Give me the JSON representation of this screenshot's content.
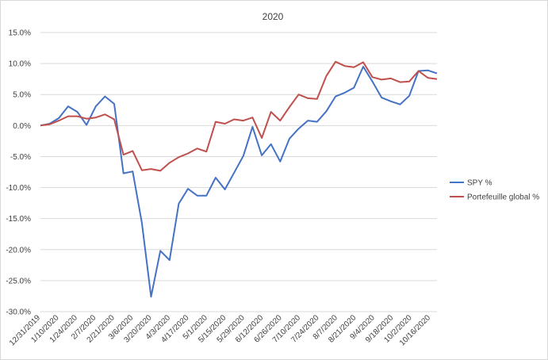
{
  "chart_data": {
    "type": "line",
    "title": "2020",
    "xlabel": "",
    "ylabel": "",
    "ylim": [
      -30,
      15
    ],
    "y_ticks": [
      15,
      10,
      5,
      0,
      -5,
      -10,
      -15,
      -20,
      -25,
      -30
    ],
    "y_tick_labels": [
      "15.0%",
      "10.0%",
      "5.0%",
      "0.0%",
      "-5.0%",
      "-10.0%",
      "-15.0%",
      "-20.0%",
      "-25.0%",
      "-30.0%"
    ],
    "grid": true,
    "legend_position": "right",
    "x_tick_labels": [
      "12/31/2019",
      "1/10/2020",
      "1/24/2020",
      "2/7/2020",
      "2/21/2020",
      "3/6/2020",
      "3/20/2020",
      "4/3/2020",
      "4/17/2020",
      "5/1/2020",
      "5/15/2020",
      "5/29/2020",
      "6/12/2020",
      "6/26/2020",
      "7/10/2020",
      "7/24/2020",
      "8/7/2020",
      "8/21/2020",
      "9/4/2020",
      "9/18/2020",
      "10/2/2020",
      "10/16/2020"
    ],
    "series": [
      {
        "name": "SPY %",
        "color": "#4472c4",
        "values": [
          0.0,
          0.3,
          1.2,
          3.1,
          2.2,
          0.1,
          3.1,
          4.7,
          3.5,
          -7.7,
          -7.4,
          -15.7,
          -27.6,
          -20.2,
          -21.7,
          -12.6,
          -10.2,
          -11.3,
          -11.3,
          -8.4,
          -10.3,
          -7.6,
          -4.9,
          -0.2,
          -4.8,
          -3.0,
          -5.8,
          -2.1,
          -0.5,
          0.8,
          0.6,
          2.3,
          4.7,
          5.3,
          6.1,
          9.5,
          7.1,
          4.5,
          3.9,
          3.4,
          4.8,
          8.8,
          8.9,
          8.4
        ]
      },
      {
        "name": "Portefeuille global %",
        "color": "#c0504d",
        "values": [
          0.0,
          0.2,
          0.8,
          1.5,
          1.5,
          1.1,
          1.3,
          1.8,
          1.0,
          -4.7,
          -4.1,
          -7.2,
          -7.0,
          -7.3,
          -6.0,
          -5.1,
          -4.5,
          -3.7,
          -4.2,
          0.6,
          0.3,
          1.0,
          0.8,
          1.3,
          -2.0,
          2.2,
          0.8,
          3.0,
          5.0,
          4.4,
          4.3,
          8.0,
          10.3,
          9.6,
          9.4,
          10.2,
          7.8,
          7.4,
          7.6,
          7.0,
          7.1,
          8.8,
          7.7,
          7.5
        ]
      }
    ]
  }
}
